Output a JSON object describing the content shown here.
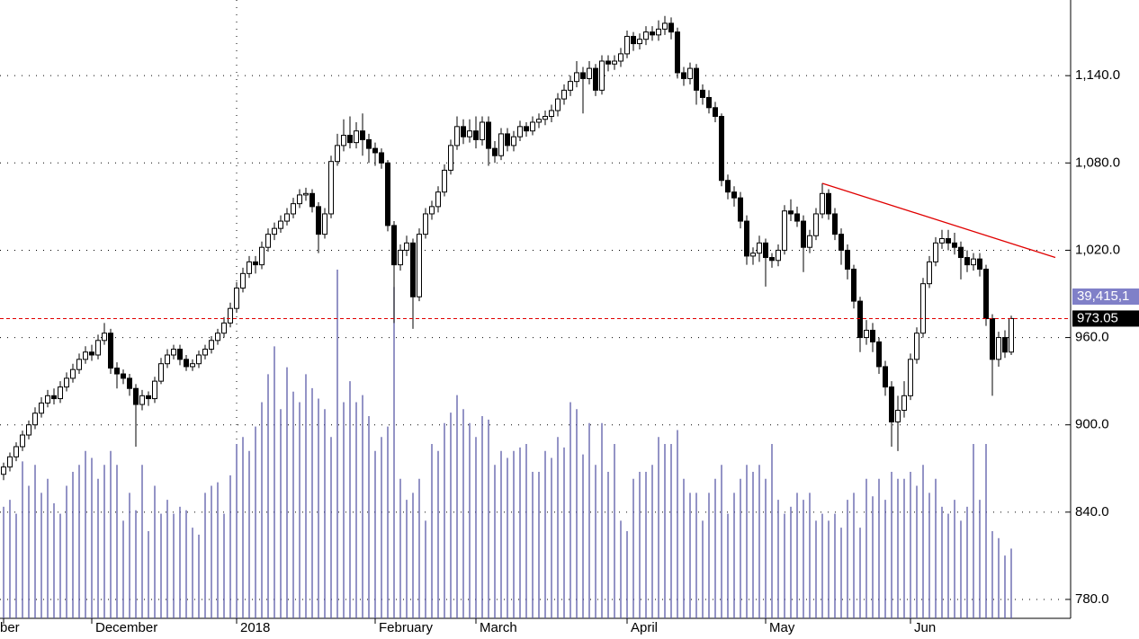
{
  "chart_data": {
    "type": "candlestick",
    "categories": [
      "ber",
      null,
      null,
      null,
      null,
      null,
      null,
      null,
      null,
      null,
      null,
      null,
      null,
      null,
      "December",
      null,
      null,
      null,
      null,
      null,
      null,
      null,
      null,
      null,
      null,
      null,
      null,
      null,
      null,
      null,
      null,
      null,
      null,
      null,
      null,
      null,
      null,
      "2018",
      null,
      null,
      null,
      null,
      null,
      null,
      null,
      null,
      null,
      null,
      null,
      null,
      null,
      null,
      null,
      null,
      null,
      null,
      null,
      null,
      null,
      "February",
      null,
      null,
      null,
      null,
      null,
      null,
      null,
      null,
      null,
      null,
      null,
      null,
      null,
      null,
      null,
      "March",
      null,
      null,
      null,
      null,
      null,
      null,
      null,
      null,
      null,
      null,
      null,
      null,
      null,
      null,
      null,
      null,
      null,
      null,
      null,
      null,
      null,
      null,
      null,
      "April",
      null,
      null,
      null,
      null,
      null,
      null,
      null,
      null,
      null,
      null,
      null,
      null,
      null,
      null,
      null,
      null,
      null,
      null,
      null,
      null,
      null,
      "May",
      null,
      null,
      null,
      null,
      null,
      null,
      null,
      null,
      null,
      null,
      null,
      null,
      null,
      null,
      null,
      null,
      null,
      null,
      null,
      null,
      null,
      null,
      "Jun",
      null,
      null,
      null,
      null,
      null,
      null,
      null,
      null,
      null,
      null,
      null,
      null,
      null,
      null,
      null,
      null
    ],
    "open": [
      866,
      871,
      878,
      885,
      893,
      900,
      908,
      915,
      920,
      918,
      926,
      932,
      938,
      945,
      950,
      948,
      958,
      963,
      939,
      935,
      932,
      925,
      914,
      920,
      918,
      930,
      942,
      948,
      952,
      945,
      940,
      942,
      948,
      952,
      958,
      963,
      970,
      980,
      994,
      1004,
      1012,
      1010,
      1022,
      1031,
      1035,
      1040,
      1045,
      1052,
      1058,
      1059,
      1050,
      1031,
      1045,
      1081,
      1092,
      1099,
      1094,
      1102,
      1096,
      1090,
      1087,
      1080,
      1037,
      1010,
      1020,
      1025,
      988,
      1031,
      1045,
      1050,
      1060,
      1075,
      1092,
      1105,
      1098,
      1102,
      1096,
      1108,
      1090,
      1085,
      1100,
      1092,
      1098,
      1105,
      1102,
      1108,
      1110,
      1112,
      1116,
      1124,
      1130,
      1136,
      1142,
      1138,
      1145,
      1130,
      1150,
      1148,
      1150,
      1155,
      1167,
      1162,
      1165,
      1170,
      1168,
      1172,
      1176,
      1170,
      1142,
      1138,
      1145,
      1130,
      1125,
      1118,
      1112,
      1068,
      1060,
      1056,
      1040,
      1016,
      1018,
      1025,
      1015,
      1013,
      1020,
      1047,
      1045,
      1040,
      1022,
      1030,
      1045,
      1059,
      1045,
      1031,
      1020,
      1007,
      985,
      960,
      965,
      957,
      940,
      926,
      902,
      910,
      920,
      945,
      963,
      997,
      1012,
      1025,
      1028,
      1025,
      1022,
      1015,
      1010,
      1014,
      1007,
      973,
      945,
      960,
      950
    ],
    "high": [
      874,
      881,
      888,
      896,
      903,
      912,
      919,
      924,
      925,
      930,
      936,
      942,
      949,
      954,
      955,
      962,
      970,
      966,
      943,
      938,
      935,
      928,
      924,
      923,
      933,
      946,
      952,
      955,
      955,
      948,
      945,
      951,
      955,
      961,
      966,
      974,
      984,
      998,
      1008,
      1016,
      1016,
      1026,
      1035,
      1039,
      1044,
      1049,
      1056,
      1062,
      1063,
      1062,
      1053,
      1049,
      1085,
      1100,
      1110,
      1112,
      1108,
      1114,
      1100,
      1094,
      1090,
      1082,
      1040,
      1024,
      1030,
      1028,
      1035,
      1049,
      1054,
      1064,
      1079,
      1096,
      1112,
      1110,
      1110,
      1112,
      1112,
      1112,
      1095,
      1104,
      1104,
      1102,
      1109,
      1108,
      1112,
      1114,
      1116,
      1120,
      1128,
      1134,
      1140,
      1150,
      1146,
      1150,
      1148,
      1154,
      1154,
      1154,
      1159,
      1171,
      1170,
      1169,
      1174,
      1174,
      1178,
      1181,
      1180,
      1173,
      1146,
      1149,
      1148,
      1134,
      1130,
      1122,
      1114,
      1072,
      1064,
      1060,
      1044,
      1022,
      1030,
      1028,
      1018,
      1024,
      1051,
      1055,
      1050,
      1044,
      1034,
      1049,
      1066,
      1062,
      1049,
      1035,
      1024,
      1010,
      988,
      972,
      970,
      960,
      944,
      930,
      920,
      930,
      949,
      967,
      1001,
      1016,
      1029,
      1034,
      1034,
      1032,
      1026,
      1020,
      1018,
      1018,
      1010,
      976,
      964,
      965,
      975
    ],
    "low": [
      862,
      868,
      875,
      882,
      890,
      897,
      905,
      912,
      914,
      915,
      923,
      929,
      935,
      942,
      944,
      945,
      955,
      935,
      925,
      928,
      920,
      885,
      910,
      913,
      915,
      928,
      939,
      945,
      941,
      937,
      937,
      939,
      945,
      949,
      955,
      960,
      967,
      977,
      991,
      1001,
      1004,
      1007,
      1019,
      1027,
      1032,
      1037,
      1042,
      1049,
      1054,
      1046,
      1018,
      1028,
      1042,
      1078,
      1088,
      1090,
      1090,
      1085,
      1080,
      1078,
      1076,
      1033,
      970,
      1006,
      1016,
      966,
      985,
      1028,
      1041,
      1046,
      1057,
      1072,
      1089,
      1093,
      1094,
      1090,
      1092,
      1078,
      1080,
      1082,
      1088,
      1088,
      1095,
      1098,
      1099,
      1104,
      1106,
      1108,
      1112,
      1120,
      1126,
      1132,
      1114,
      1134,
      1126,
      1127,
      1143,
      1144,
      1146,
      1152,
      1157,
      1158,
      1161,
      1164,
      1164,
      1168,
      1165,
      1138,
      1133,
      1134,
      1120,
      1120,
      1114,
      1108,
      1064,
      1055,
      1050,
      1035,
      1010,
      1010,
      1012,
      995,
      1008,
      1009,
      1017,
      1040,
      1036,
      1005,
      1018,
      1027,
      1042,
      1041,
      1027,
      1010,
      1000,
      980,
      950,
      955,
      950,
      935,
      920,
      885,
      882,
      905,
      917,
      942,
      960,
      994,
      1009,
      1021,
      1020,
      1017,
      1000,
      1005,
      1006,
      1002,
      968,
      920,
      940,
      946,
      948
    ],
    "close": [
      871,
      878,
      885,
      893,
      900,
      908,
      915,
      920,
      918,
      926,
      932,
      938,
      945,
      950,
      948,
      958,
      963,
      939,
      935,
      932,
      925,
      914,
      920,
      918,
      930,
      942,
      948,
      952,
      945,
      940,
      942,
      948,
      952,
      958,
      963,
      970,
      980,
      994,
      1004,
      1012,
      1010,
      1022,
      1031,
      1035,
      1040,
      1045,
      1052,
      1058,
      1059,
      1050,
      1031,
      1045,
      1081,
      1092,
      1099,
      1094,
      1102,
      1096,
      1090,
      1087,
      1080,
      1037,
      1010,
      1020,
      1025,
      988,
      1031,
      1045,
      1050,
      1060,
      1075,
      1092,
      1105,
      1098,
      1102,
      1096,
      1108,
      1090,
      1085,
      1100,
      1092,
      1098,
      1105,
      1102,
      1108,
      1110,
      1112,
      1116,
      1124,
      1130,
      1136,
      1142,
      1138,
      1145,
      1130,
      1150,
      1148,
      1150,
      1155,
      1167,
      1162,
      1165,
      1170,
      1168,
      1172,
      1176,
      1170,
      1142,
      1138,
      1145,
      1130,
      1125,
      1118,
      1112,
      1068,
      1060,
      1056,
      1040,
      1016,
      1018,
      1025,
      1015,
      1013,
      1020,
      1047,
      1045,
      1040,
      1022,
      1030,
      1045,
      1059,
      1045,
      1031,
      1020,
      1007,
      985,
      960,
      965,
      957,
      940,
      926,
      902,
      910,
      920,
      945,
      963,
      997,
      1012,
      1025,
      1028,
      1025,
      1022,
      1015,
      1010,
      1014,
      1007,
      973,
      945,
      960,
      950,
      973.05
    ],
    "volume": [
      32,
      34,
      30,
      45,
      38,
      44,
      36,
      40,
      33,
      30,
      38,
      42,
      44,
      48,
      46,
      40,
      44,
      48,
      44,
      28,
      36,
      31,
      44,
      25,
      38,
      30,
      34,
      30,
      32,
      31,
      26,
      24,
      36,
      38,
      39,
      30,
      41,
      50,
      52,
      48,
      55,
      62,
      70,
      78,
      60,
      72,
      65,
      62,
      70,
      66,
      63,
      60,
      52,
      100,
      62,
      68,
      62,
      64,
      58,
      48,
      52,
      55,
      95,
      40,
      34,
      36,
      40,
      28,
      50,
      48,
      56,
      59,
      64,
      60,
      56,
      52,
      58,
      57,
      44,
      48,
      46,
      48,
      49,
      50,
      42,
      42,
      48,
      46,
      52,
      49,
      62,
      60,
      47,
      56,
      44,
      56,
      42,
      50,
      28,
      25,
      40,
      42,
      42,
      44,
      52,
      50,
      50,
      54,
      40,
      36,
      36,
      28,
      36,
      40,
      44,
      30,
      36,
      40,
      44,
      42,
      44,
      40,
      50,
      34,
      30,
      32,
      36,
      34,
      36,
      28,
      30,
      28,
      30,
      26,
      34,
      36,
      26,
      40,
      35,
      40,
      34,
      42,
      40,
      40,
      42,
      38,
      44,
      36,
      40,
      32,
      30,
      34,
      28,
      32,
      50,
      34,
      50,
      25,
      23,
      18,
      20
    ],
    "volume_axis": "y2",
    "ylim": [
      767,
      1192
    ],
    "yticks": [
      {
        "value": 780,
        "label": "780.0"
      },
      {
        "value": 840,
        "label": "840.0"
      },
      {
        "value": 900,
        "label": "900.0"
      },
      {
        "value": 960,
        "label": "960.0"
      },
      {
        "value": 1020,
        "label": "1,020.0"
      },
      {
        "value": 1080,
        "label": "1,080.0"
      },
      {
        "value": 1140,
        "label": "1,140.0"
      }
    ],
    "y2lim": [
      0,
      100
    ],
    "grid": true,
    "year_divider": "2018",
    "up_color": "#ffffff",
    "down_color": "#000000",
    "volume_color": "#5a5aa8",
    "last_line_color": "#e00000",
    "volume_label": "39,415,1",
    "volume_label_color": "#8080c8",
    "trendline": {
      "color": "#e00000",
      "start": [
        130,
        1066
      ],
      "end": [
        167,
        1015
      ]
    }
  }
}
